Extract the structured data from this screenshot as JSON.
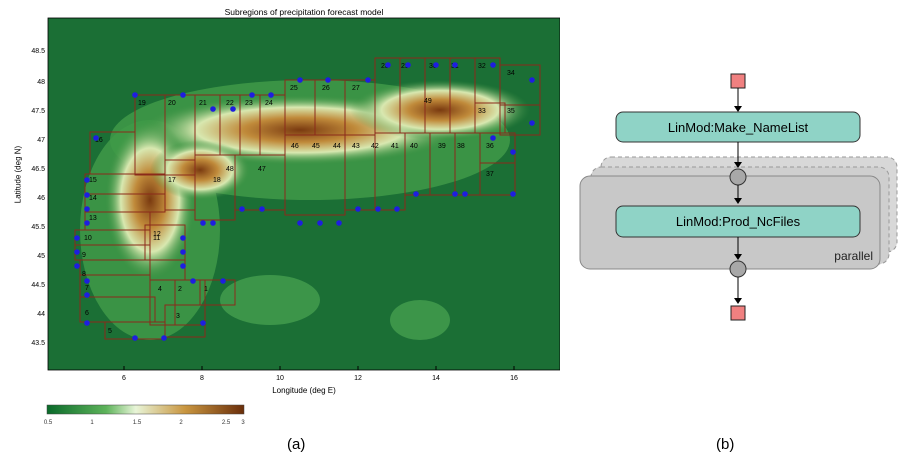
{
  "map": {
    "title": "Subregions of precipitation forecast model",
    "xlabel": "Longitude (deg E)",
    "ylabel": "Latitude (deg N)",
    "x_ticks": [
      "6",
      "8",
      "10",
      "12",
      "14",
      "16"
    ],
    "y_ticks": [
      "48.5",
      "48",
      "47.5",
      "47",
      "46.5",
      "46",
      "45.5",
      "45",
      "44.5",
      "44",
      "43.5"
    ],
    "colorbar_ticks": [
      "0.5",
      "1",
      "1.5",
      "2",
      "2.5",
      "3"
    ],
    "region_labels": [
      "1",
      "2",
      "3",
      "4",
      "5",
      "6",
      "7",
      "8",
      "9",
      "10",
      "11",
      "12",
      "13",
      "14",
      "15",
      "16",
      "17",
      "18",
      "19",
      "20",
      "21",
      "22",
      "23",
      "24",
      "25",
      "26",
      "27",
      "28",
      "29",
      "30",
      "31",
      "32",
      "33",
      "34",
      "35",
      "36",
      "37",
      "38",
      "39",
      "40",
      "41",
      "42",
      "43",
      "44",
      "45",
      "46",
      "47",
      "48",
      "49"
    ]
  },
  "flow": {
    "node1": "LinMod:Make_NameList",
    "node2": "LinMod:Prod_NcFiles",
    "parallel_label": "parallel"
  },
  "captions": {
    "a": "(a)",
    "b": "(b)"
  },
  "colors": {
    "start_end": "#f08080",
    "node": "#8fd3c6",
    "parallel_box": "#cfcfcf",
    "region_border": "#8b2a1a",
    "station": "#1e1ee0"
  }
}
